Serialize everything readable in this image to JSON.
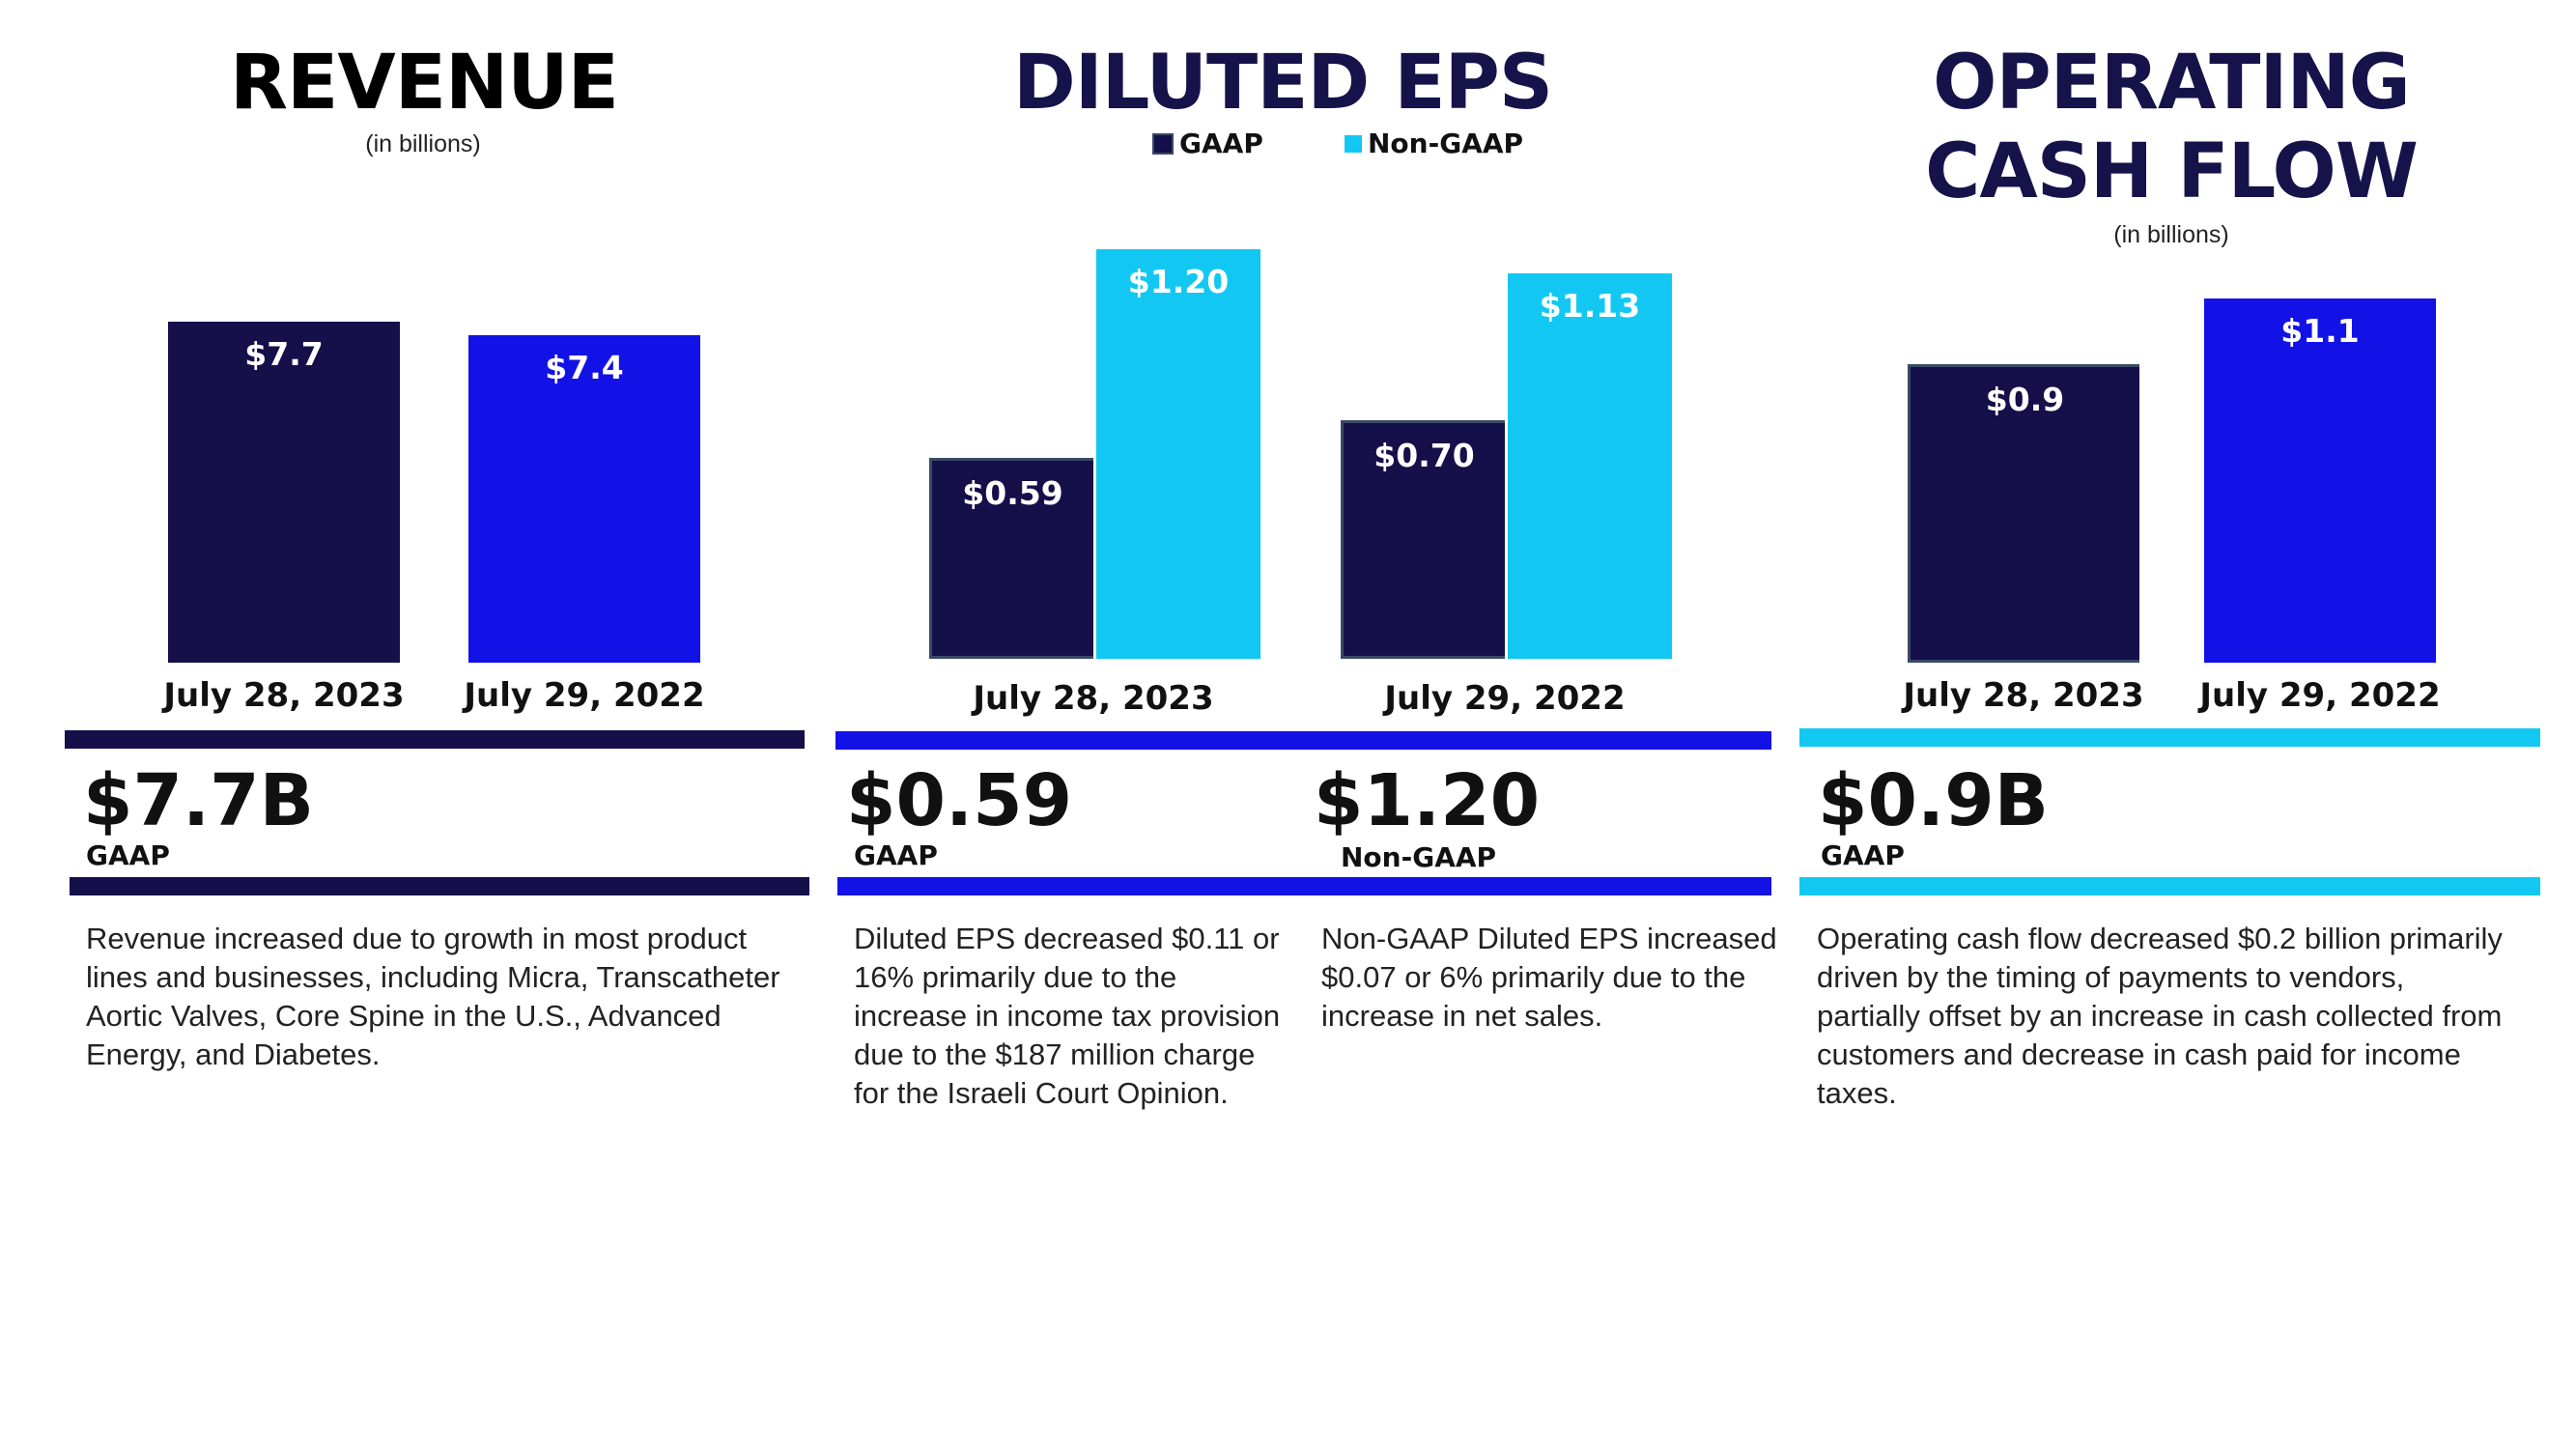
{
  "colors": {
    "navy": "#150f4a",
    "blue": "#1212e6",
    "cyan": "#12c8f2"
  },
  "chart_data": [
    {
      "type": "bar",
      "title": "REVENUE",
      "subtitle": "(in billions)",
      "categories": [
        "July 28, 2023",
        "July 29, 2022"
      ],
      "values": [
        7.7,
        7.4
      ],
      "data_labels": [
        "$7.7",
        "$7.4"
      ],
      "bar_colors": [
        "#150f4a",
        "#1212e6"
      ],
      "grid": false
    },
    {
      "type": "bar",
      "title": "DILUTED EPS",
      "categories": [
        "July 28, 2023",
        "July 29, 2022"
      ],
      "legend_position": "top",
      "series": [
        {
          "name": "GAAP",
          "values": [
            0.59,
            0.7
          ],
          "data_labels": [
            "$0.59",
            "$0.70"
          ],
          "color": "#150f4a"
        },
        {
          "name": "Non-GAAP",
          "values": [
            1.2,
            1.13
          ],
          "data_labels": [
            "$1.20",
            "$1.13"
          ],
          "color": "#12c8f2"
        }
      ],
      "grid": false
    },
    {
      "type": "bar",
      "title_lines": [
        "OPERATING",
        "CASH FLOW"
      ],
      "subtitle": "(in billions)",
      "categories": [
        "July 28, 2023",
        "July 29, 2022"
      ],
      "values": [
        0.9,
        1.1
      ],
      "data_labels": [
        "$0.9",
        "$1.1"
      ],
      "bar_colors": [
        "#150f4a",
        "#1212e6"
      ],
      "grid": false
    }
  ],
  "summary": {
    "revenue": {
      "value": "$7.7B",
      "basis": "GAAP",
      "text": "Revenue increased due to growth in most product lines and businesses, including Micra, Transcatheter Aortic Valves, Core Spine in the U.S., Advanced Energy, and Diabetes."
    },
    "eps_gaap": {
      "value": "$0.59",
      "basis": "GAAP",
      "text": "Diluted EPS decreased $0.11 or 16% primarily due to the increase in income tax provision due to the $187 million charge for the Israeli Court Opinion."
    },
    "eps_nongaap": {
      "value": "$1.20",
      "basis": "Non-GAAP",
      "text": "Non-GAAP Diluted EPS increased $0.07 or 6% primarily due to the increase in net sales."
    },
    "ocf": {
      "value": "$0.9B",
      "basis": "GAAP",
      "text": "Operating cash flow decreased $0.2 billion primarily driven by the timing of payments to vendors, partially offset by an increase in cash collected from customers and decrease in cash paid for income taxes."
    }
  }
}
